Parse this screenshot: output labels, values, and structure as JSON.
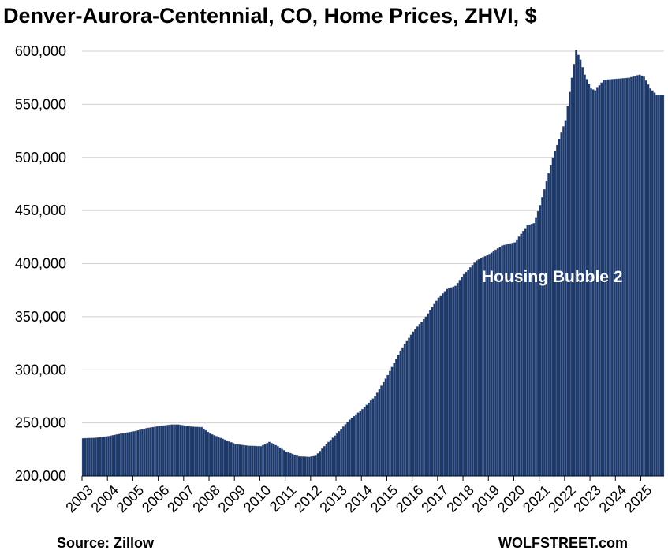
{
  "chart_data": {
    "type": "bar",
    "title": "Denver-Aurora-Centennial, CO, Home Prices, ZHVI, $",
    "xlabel": "",
    "ylabel": "",
    "ylim": [
      200000,
      600000
    ],
    "yticks": [
      "200,000",
      "250,000",
      "300,000",
      "350,000",
      "400,000",
      "450,000",
      "500,000",
      "550,000",
      "600,000"
    ],
    "xticks": [
      "2003",
      "2004",
      "2005",
      "2006",
      "2007",
      "2008",
      "2009",
      "2010",
      "2011",
      "2012",
      "2013",
      "2014",
      "2015",
      "2016",
      "2017",
      "2018",
      "2019",
      "2020",
      "2021",
      "2022",
      "2023",
      "2024",
      "2025"
    ],
    "frequency": "monthly",
    "start": "2003-01",
    "end": "2025-11",
    "anchors": [
      [
        "2003-01",
        235500
      ],
      [
        "2003-07",
        236000
      ],
      [
        "2004-01",
        237500
      ],
      [
        "2004-07",
        240000
      ],
      [
        "2005-01",
        242000
      ],
      [
        "2005-07",
        245000
      ],
      [
        "2006-01",
        247000
      ],
      [
        "2006-07",
        248500
      ],
      [
        "2006-10",
        248500
      ],
      [
        "2007-04",
        246500
      ],
      [
        "2007-09",
        246000
      ],
      [
        "2008-01",
        240000
      ],
      [
        "2008-07",
        235000
      ],
      [
        "2009-01",
        230000
      ],
      [
        "2009-07",
        228500
      ],
      [
        "2010-01",
        228000
      ],
      [
        "2010-05",
        232000
      ],
      [
        "2010-09",
        228000
      ],
      [
        "2011-01",
        223000
      ],
      [
        "2011-07",
        218500
      ],
      [
        "2011-12",
        218000
      ],
      [
        "2012-03",
        219000
      ],
      [
        "2012-07",
        228000
      ],
      [
        "2013-01",
        240000
      ],
      [
        "2013-07",
        253000
      ],
      [
        "2014-01",
        263000
      ],
      [
        "2014-07",
        275000
      ],
      [
        "2015-01",
        295000
      ],
      [
        "2015-07",
        318000
      ],
      [
        "2016-01",
        336000
      ],
      [
        "2016-07",
        350000
      ],
      [
        "2017-01",
        368000
      ],
      [
        "2017-05",
        376000
      ],
      [
        "2017-09",
        379000
      ],
      [
        "2018-01",
        390000
      ],
      [
        "2018-07",
        403000
      ],
      [
        "2019-01",
        409000
      ],
      [
        "2019-07",
        417000
      ],
      [
        "2020-01",
        420000
      ],
      [
        "2020-07",
        436000
      ],
      [
        "2020-10",
        438000
      ],
      [
        "2021-01",
        455000
      ],
      [
        "2021-07",
        500000
      ],
      [
        "2022-01",
        535000
      ],
      [
        "2022-04",
        575000
      ],
      [
        "2022-06",
        601000
      ],
      [
        "2022-08",
        592000
      ],
      [
        "2022-10",
        578000
      ],
      [
        "2023-01",
        565000
      ],
      [
        "2023-03",
        563000
      ],
      [
        "2023-07",
        573000
      ],
      [
        "2024-01",
        574000
      ],
      [
        "2024-07",
        575000
      ],
      [
        "2024-12",
        578000
      ],
      [
        "2025-02",
        576000
      ],
      [
        "2025-05",
        565000
      ],
      [
        "2025-08",
        559000
      ],
      [
        "2025-11",
        559000
      ]
    ],
    "annotations": [
      "Housing Bubble 2"
    ],
    "bar_color": "#203864",
    "bar_edge_color": "#6b8fd0",
    "grid": true,
    "legend": "none"
  },
  "footer": {
    "source": "Source: Zillow",
    "brand": "WOLFSTREET.com"
  }
}
